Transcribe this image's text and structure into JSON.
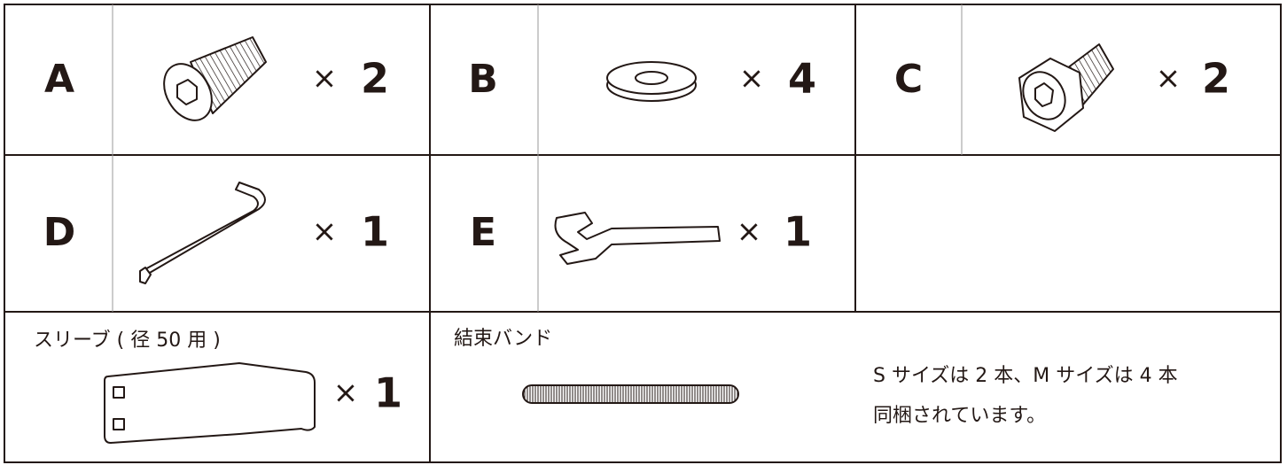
{
  "parts": [
    {
      "letter": "A",
      "times": "×",
      "count": "2"
    },
    {
      "letter": "B",
      "times": "×",
      "count": "4"
    },
    {
      "letter": "C",
      "times": "×",
      "count": "2"
    },
    {
      "letter": "D",
      "times": "×",
      "count": "1"
    },
    {
      "letter": "E",
      "times": "×",
      "count": "1"
    }
  ],
  "sleeve": {
    "label": "スリーブ ( 径 50 用 )",
    "times": "×",
    "count": "1"
  },
  "band": {
    "label": "結束バンド",
    "note": [
      "S サイズは 2 本、M サイズは 4 本",
      "同梱されています。"
    ]
  }
}
